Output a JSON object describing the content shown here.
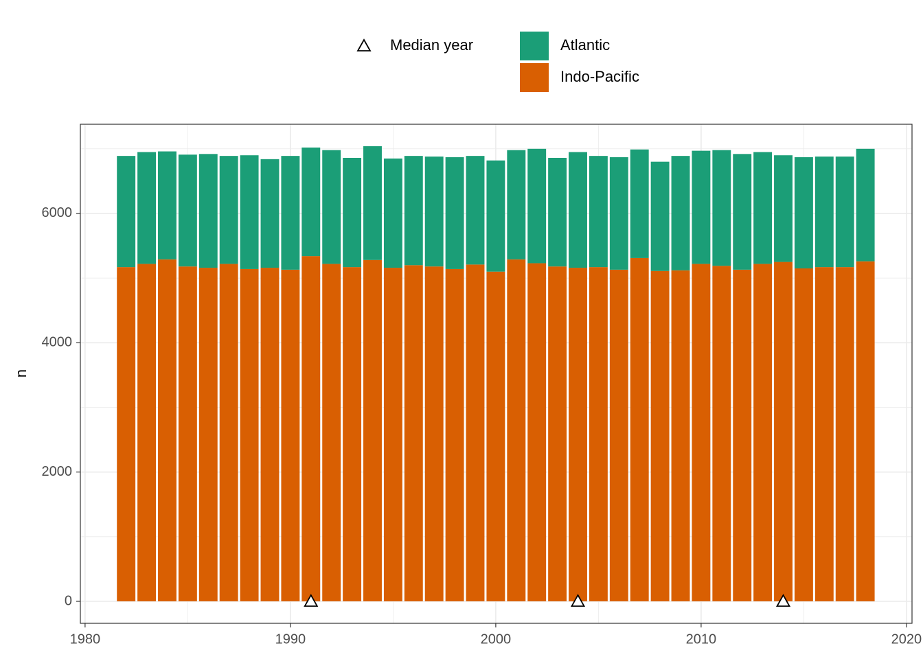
{
  "chart_data": {
    "type": "bar",
    "stacked": true,
    "y_label": "n",
    "x": [
      1982,
      1983,
      1984,
      1985,
      1986,
      1987,
      1988,
      1989,
      1990,
      1991,
      1992,
      1993,
      1994,
      1995,
      1996,
      1997,
      1998,
      1999,
      2000,
      2001,
      2002,
      2003,
      2004,
      2005,
      2006,
      2007,
      2008,
      2009,
      2010,
      2011,
      2012,
      2013,
      2014,
      2015,
      2016,
      2017,
      2018
    ],
    "series": [
      {
        "name": "Indo-Pacific",
        "color": "#d95f02",
        "values": [
          5170,
          5220,
          5290,
          5180,
          5160,
          5220,
          5140,
          5160,
          5130,
          5340,
          5220,
          5170,
          5280,
          5160,
          5200,
          5180,
          5140,
          5210,
          5100,
          5290,
          5230,
          5180,
          5160,
          5170,
          5130,
          5310,
          5110,
          5120,
          5220,
          5190,
          5130,
          5220,
          5250,
          5150,
          5170,
          5170,
          5260
        ]
      },
      {
        "name": "Atlantic",
        "color": "#1b9e77",
        "values": [
          1720,
          1730,
          1670,
          1730,
          1760,
          1670,
          1760,
          1680,
          1760,
          1680,
          1760,
          1690,
          1760,
          1690,
          1690,
          1700,
          1730,
          1680,
          1720,
          1690,
          1770,
          1680,
          1790,
          1720,
          1740,
          1680,
          1690,
          1770,
          1750,
          1790,
          1790,
          1730,
          1650,
          1720,
          1710,
          1710,
          1740
        ]
      }
    ],
    "markers": {
      "type": "scatter",
      "name": "Median year",
      "shape": "triangle-open",
      "x": [
        1991,
        2004,
        2014
      ],
      "values": [
        0,
        0,
        0
      ]
    },
    "xlim": [
      1979.77,
      2020.27
    ],
    "xticks": [
      1980,
      1990,
      2000,
      2010,
      2020
    ],
    "ylim": [
      -340,
      7380
    ],
    "yticks": [
      0,
      2000,
      4000,
      6000
    ],
    "grid": true,
    "legend_position": "top"
  }
}
